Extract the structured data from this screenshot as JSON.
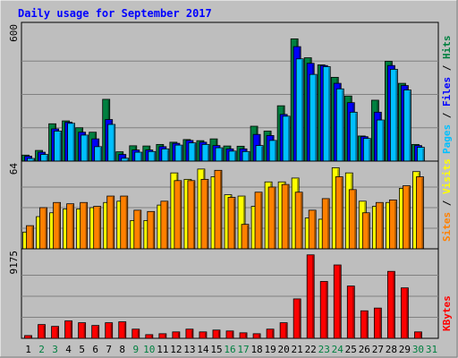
{
  "title": "Daily usage for September 2017",
  "colors": {
    "background": "#c0c0c0",
    "plot_bg": "#bebebe",
    "title": "#0000ff",
    "hits": "#008040",
    "files": "#0000ff",
    "pages": "#00c0ff",
    "visits": "#ffff00",
    "sites": "#ff8000",
    "kbytes": "#ff0000",
    "weekday_label": "#000000",
    "weekend_label": "#008040"
  },
  "chart_data": [
    {
      "type": "bar",
      "panel": "hits-files-pages",
      "ymax_label": "600",
      "ylim": [
        0,
        600
      ],
      "categories": [
        "1",
        "2",
        "3",
        "4",
        "5",
        "6",
        "7",
        "8",
        "9",
        "10",
        "11",
        "12",
        "13",
        "14",
        "15",
        "16",
        "17",
        "18",
        "19",
        "20",
        "21",
        "22",
        "23",
        "24",
        "25",
        "26",
        "27",
        "28",
        "29",
        "30",
        "31"
      ],
      "weekend": [
        false,
        true,
        true,
        false,
        false,
        false,
        false,
        false,
        true,
        true,
        false,
        false,
        false,
        false,
        false,
        true,
        true,
        false,
        false,
        false,
        false,
        false,
        true,
        true,
        false,
        false,
        false,
        false,
        false,
        true,
        true
      ],
      "series": [
        {
          "name": "Hits",
          "color_key": "hits",
          "values": [
            27,
            48,
            168,
            181,
            150,
            130,
            278,
            42,
            69,
            68,
            75,
            85,
            97,
            92,
            100,
            68,
            67,
            157,
            135,
            249,
            550,
            465,
            433,
            377,
            293,
            113,
            274,
            449,
            350,
            75,
            0
          ]
        },
        {
          "name": "Files",
          "color_key": "files",
          "values": [
            22,
            40,
            145,
            175,
            130,
            100,
            187,
            30,
            50,
            50,
            65,
            80,
            93,
            85,
            70,
            55,
            55,
            120,
            115,
            210,
            515,
            440,
            430,
            350,
            263,
            110,
            220,
            430,
            340,
            70,
            0
          ]
        },
        {
          "name": "Pages",
          "color_key": "pages",
          "values": [
            12,
            30,
            135,
            170,
            117,
            65,
            165,
            13,
            40,
            43,
            55,
            72,
            82,
            75,
            60,
            45,
            43,
            70,
            93,
            202,
            460,
            390,
            425,
            325,
            220,
            102,
            185,
            413,
            320,
            62,
            0
          ]
        }
      ],
      "legend": [
        "Pages",
        "Files",
        "Hits"
      ]
    },
    {
      "type": "bar",
      "panel": "visits-sites",
      "ymax_label": "64",
      "ylim": [
        0,
        64
      ],
      "series": [
        {
          "name": "Visits",
          "color_key": "visits",
          "values": [
            13,
            25,
            28,
            31,
            31,
            32,
            36,
            37,
            22,
            22,
            34,
            59,
            54,
            62,
            56,
            42,
            41,
            33,
            52,
            52,
            55,
            24,
            23,
            63,
            59,
            37,
            33,
            36,
            47,
            60,
            0
          ]
        },
        {
          "name": "Sites",
          "color_key": "sites",
          "values": [
            18,
            32,
            36,
            35,
            36,
            33,
            41,
            41,
            30,
            29,
            37,
            53,
            53,
            54,
            61,
            40,
            19,
            44,
            48,
            50,
            44,
            30,
            39,
            56,
            46,
            28,
            36,
            38,
            49,
            56,
            0
          ]
        }
      ],
      "legend": [
        "Sites",
        "Visits"
      ]
    },
    {
      "type": "bar",
      "panel": "kbytes",
      "ymax_label": "9175",
      "ylim": [
        0,
        9175
      ],
      "series": [
        {
          "name": "KBytes",
          "color_key": "kbytes",
          "values": [
            300,
            1500,
            1300,
            1900,
            1700,
            1400,
            1700,
            1800,
            1000,
            400,
            500,
            700,
            1000,
            700,
            900,
            800,
            600,
            500,
            1000,
            1700,
            4300,
            9100,
            6200,
            8000,
            5700,
            3000,
            3300,
            7300,
            5500,
            700,
            0
          ]
        }
      ],
      "legend": [
        "KBytes"
      ]
    }
  ]
}
